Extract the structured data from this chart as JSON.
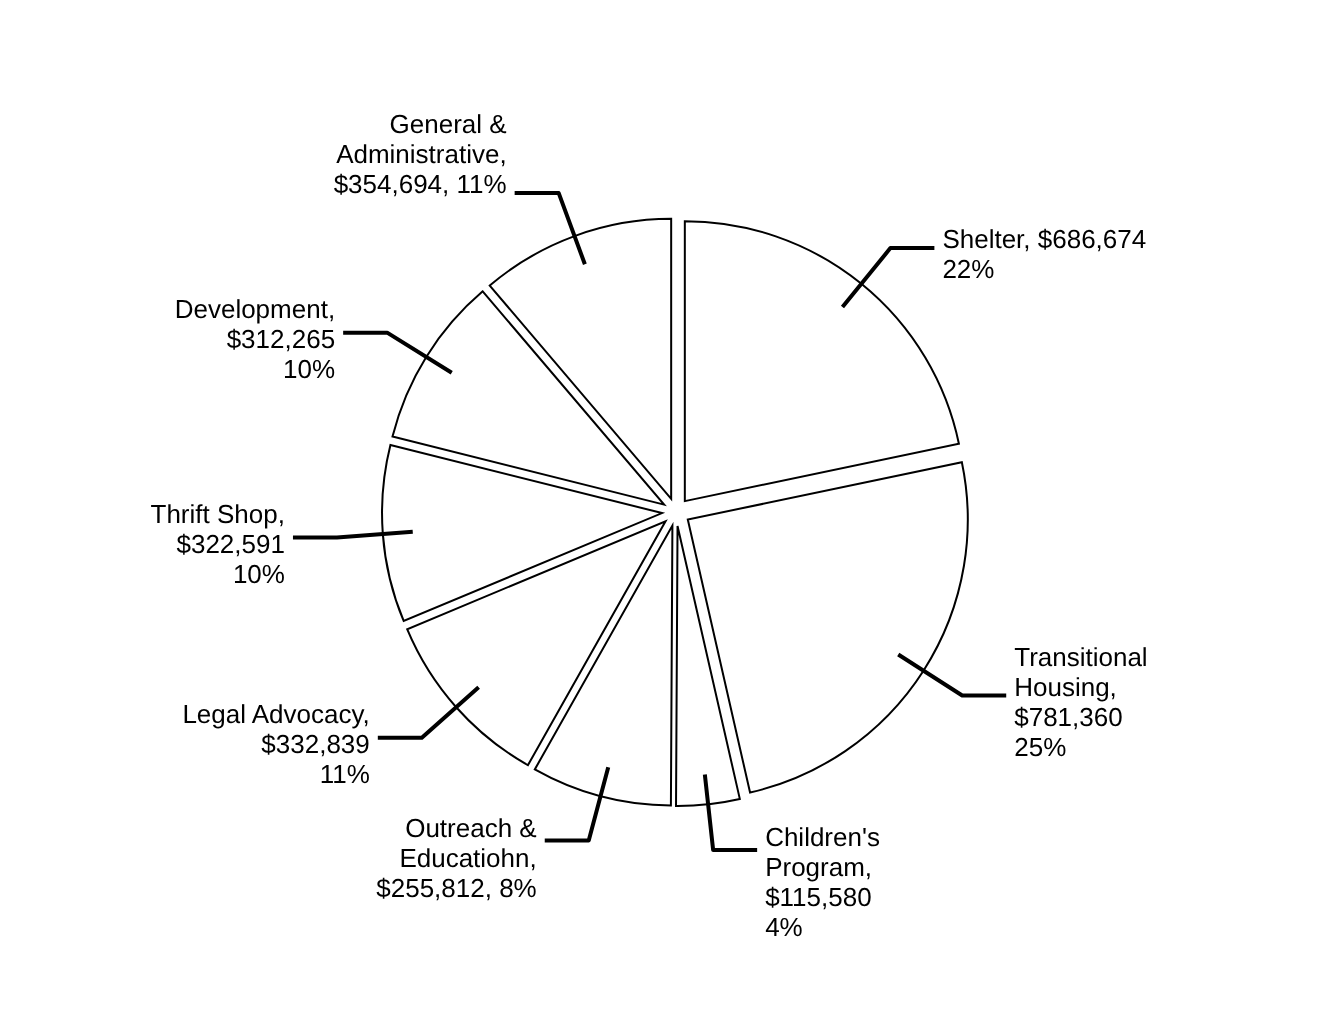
{
  "chart_data": {
    "type": "pie",
    "categories": [
      "Shelter",
      "Transitional Housing",
      "Children's Program",
      "Outreach & Educatiohn",
      "Legal Advocacy",
      "Thrift Shop",
      "Development",
      "General & Administrative"
    ],
    "values": [
      686674,
      781360,
      115580,
      255812,
      332839,
      322591,
      312265,
      354694
    ],
    "colors": [
      "#ffffff",
      "#ffffff",
      "#ffffff",
      "#ffffff",
      "#ffffff",
      "#ffffff",
      "#ffffff",
      "#ffffff"
    ],
    "value_labels": [
      ", $686,674\n22%",
      ",\n$781,360\n25%",
      ",\n$115,580\n4%",
      ",\n$255,812, 8%",
      ",\n$332,839\n11%",
      ",\n$322,591\n10%",
      ",\n$312,265\n10%",
      ",\n$354,694, 11%"
    ]
  }
}
